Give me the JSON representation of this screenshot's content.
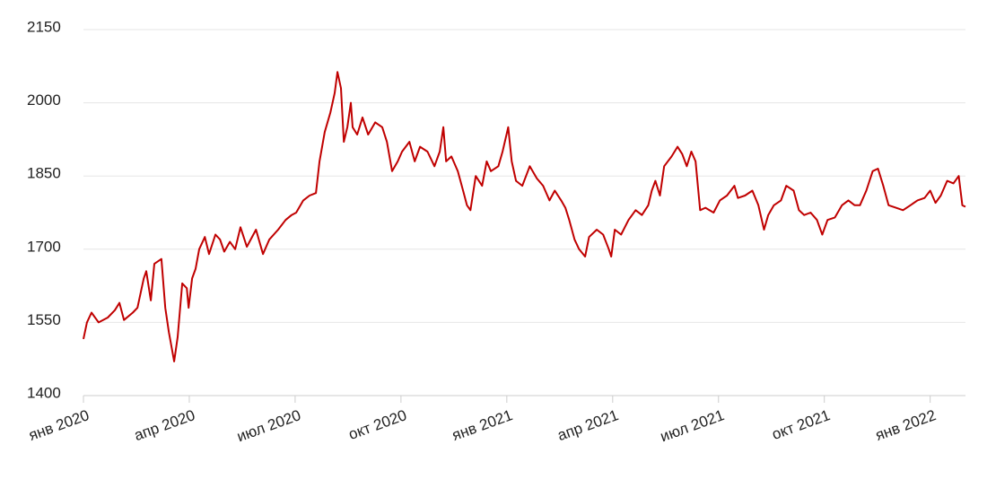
{
  "chart_data": {
    "type": "line",
    "color": "#c00000",
    "grid": true,
    "xlim": [
      0,
      25
    ],
    "ylim": [
      1400,
      2150
    ],
    "yticks": [
      1400,
      1550,
      1700,
      1850,
      2000,
      2150
    ],
    "xticks": [
      {
        "value": 0,
        "label": "янв 2020"
      },
      {
        "value": 3,
        "label": "апр 2020"
      },
      {
        "value": 6,
        "label": "июл 2020"
      },
      {
        "value": 9,
        "label": "окт 2020"
      },
      {
        "value": 12,
        "label": "янв 2021"
      },
      {
        "value": 15,
        "label": "апр 2021"
      },
      {
        "value": 18,
        "label": "июл 2021"
      },
      {
        "value": 21,
        "label": "окт 2021"
      },
      {
        "value": 24,
        "label": "янв 2022"
      }
    ],
    "x": [
      0,
      0.1,
      0.23,
      0.43,
      0.69,
      0.89,
      1.02,
      1.15,
      1.4,
      1.53,
      1.71,
      1.78,
      1.91,
      2.01,
      2.21,
      2.32,
      2.42,
      2.57,
      2.67,
      2.8,
      2.93,
      2.98,
      3.08,
      3.18,
      3.28,
      3.44,
      3.56,
      3.74,
      3.87,
      3.99,
      4.15,
      4.3,
      4.45,
      4.63,
      4.89,
      5.09,
      5.27,
      5.52,
      5.73,
      5.9,
      6.03,
      6.23,
      6.41,
      6.59,
      6.69,
      6.84,
      7.0,
      7.12,
      7.2,
      7.3,
      7.38,
      7.48,
      7.58,
      7.63,
      7.76,
      7.91,
      8.07,
      8.27,
      8.47,
      8.6,
      8.75,
      8.91,
      9.03,
      9.24,
      9.39,
      9.54,
      9.75,
      9.95,
      10.1,
      10.2,
      10.28,
      10.43,
      10.61,
      10.76,
      10.87,
      10.97,
      11.12,
      11.3,
      11.43,
      11.55,
      11.76,
      11.88,
      12.04,
      12.14,
      12.26,
      12.44,
      12.65,
      12.85,
      13.03,
      13.21,
      13.36,
      13.54,
      13.66,
      13.77,
      13.92,
      14.05,
      14.22,
      14.33,
      14.55,
      14.73,
      14.89,
      14.96,
      15.06,
      15.24,
      15.45,
      15.65,
      15.83,
      16.01,
      16.11,
      16.21,
      16.34,
      16.46,
      16.67,
      16.84,
      16.97,
      17.1,
      17.23,
      17.35,
      17.48,
      17.63,
      17.86,
      18.04,
      18.24,
      18.45,
      18.55,
      18.75,
      18.96,
      19.13,
      19.29,
      19.41,
      19.57,
      19.77,
      19.92,
      20.13,
      20.28,
      20.43,
      20.61,
      20.79,
      20.94,
      21.09,
      21.3,
      21.5,
      21.68,
      21.86,
      22.01,
      22.19,
      22.37,
      22.52,
      22.67,
      22.82,
      23.03,
      23.23,
      23.44,
      23.64,
      23.84,
      24.0,
      24.15,
      24.3,
      24.48,
      24.66,
      24.81,
      24.91,
      25
    ],
    "values": [
      1516,
      1550,
      1570,
      1550,
      1560,
      1575,
      1590,
      1555,
      1570,
      1580,
      1640,
      1655,
      1595,
      1670,
      1680,
      1580,
      1530,
      1470,
      1520,
      1630,
      1620,
      1580,
      1640,
      1660,
      1700,
      1725,
      1690,
      1730,
      1720,
      1695,
      1715,
      1700,
      1745,
      1705,
      1740,
      1690,
      1720,
      1740,
      1760,
      1770,
      1775,
      1800,
      1810,
      1815,
      1880,
      1940,
      1980,
      2020,
      2063,
      2030,
      1920,
      1950,
      2000,
      1950,
      1935,
      1970,
      1935,
      1960,
      1950,
      1920,
      1860,
      1880,
      1900,
      1920,
      1880,
      1910,
      1900,
      1870,
      1900,
      1950,
      1880,
      1890,
      1860,
      1820,
      1790,
      1780,
      1850,
      1830,
      1880,
      1860,
      1870,
      1900,
      1950,
      1880,
      1840,
      1830,
      1870,
      1845,
      1830,
      1800,
      1820,
      1800,
      1785,
      1760,
      1720,
      1700,
      1685,
      1725,
      1740,
      1730,
      1700,
      1685,
      1740,
      1730,
      1760,
      1780,
      1770,
      1790,
      1820,
      1840,
      1810,
      1870,
      1890,
      1910,
      1895,
      1870,
      1900,
      1880,
      1780,
      1785,
      1775,
      1800,
      1810,
      1830,
      1805,
      1810,
      1820,
      1790,
      1740,
      1770,
      1790,
      1800,
      1830,
      1820,
      1780,
      1770,
      1775,
      1760,
      1730,
      1760,
      1765,
      1790,
      1800,
      1790,
      1790,
      1820,
      1860,
      1865,
      1830,
      1790,
      1785,
      1780,
      1790,
      1800,
      1805,
      1820,
      1795,
      1810,
      1840,
      1835,
      1850,
      1790,
      1787
    ]
  }
}
